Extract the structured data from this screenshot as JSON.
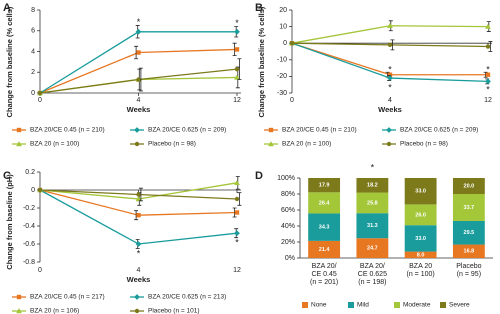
{
  "chart_data": [
    {
      "type": "line",
      "label": "A",
      "x_label": "Weeks",
      "y_label": "Change from baseline (% cells)",
      "categories": [
        "0",
        "4",
        "12"
      ],
      "ylim": [
        0,
        8
      ],
      "yticks": [
        0,
        2,
        4,
        6,
        8
      ],
      "series": [
        {
          "name": "BZA 20/CE 0.45 (n = 210)",
          "color": "#e87722",
          "marker": "square",
          "values": [
            0,
            3.9,
            4.2
          ],
          "errors": [
            null,
            0.6,
            0.6
          ]
        },
        {
          "name": "BZA 20/CE 0.625 (n = 209)",
          "color": "#1a9c9c",
          "marker": "diamond",
          "values": [
            0,
            5.9,
            5.9
          ],
          "errors": [
            null,
            0.6,
            0.5
          ]
        },
        {
          "name": "BZA 20 (n = 100)",
          "color": "#a4c639",
          "marker": "triangle",
          "values": [
            0,
            1.3,
            1.5
          ],
          "errors": [
            null,
            1.0,
            1.0
          ]
        },
        {
          "name": "Placebo (n = 98)",
          "color": "#7d7a1c",
          "marker": "circle",
          "values": [
            0,
            1.3,
            2.3
          ],
          "errors": [
            null,
            1.1,
            1.0
          ]
        }
      ],
      "annotations": [
        {
          "text": "*",
          "x": "4",
          "y": 7.0
        },
        {
          "text": "*",
          "x": "12",
          "y": 6.9
        }
      ]
    },
    {
      "type": "line",
      "label": "B",
      "x_label": "Weeks",
      "y_label": "Change from baseline (% cells)",
      "categories": [
        "0",
        "4",
        "12"
      ],
      "ylim": [
        -30,
        20
      ],
      "yticks": [
        -30,
        -20,
        -10,
        0,
        10,
        20
      ],
      "series": [
        {
          "name": "BZA 20/CE 0.45 (n = 210)",
          "color": "#e87722",
          "marker": "square",
          "values": [
            0,
            -19,
            -19
          ],
          "errors": [
            null,
            1.5,
            1.5
          ]
        },
        {
          "name": "BZA 20/CE 0.625 (n = 209)",
          "color": "#1a9c9c",
          "marker": "diamond",
          "values": [
            0,
            -21,
            -23
          ],
          "errors": [
            null,
            1.5,
            1.5
          ]
        },
        {
          "name": "BZA 20 (n = 100)",
          "color": "#a4c639",
          "marker": "triangle",
          "values": [
            0,
            10.5,
            10
          ],
          "errors": [
            null,
            3,
            3
          ]
        },
        {
          "name": "Placebo (n = 98)",
          "color": "#7d7a1c",
          "marker": "circle",
          "values": [
            0,
            -1,
            -2
          ],
          "errors": [
            null,
            3,
            3
          ]
        }
      ],
      "annotations": [
        {
          "text": "*",
          "x": "4",
          "y": -15
        },
        {
          "text": "*",
          "x": "4",
          "y": -26
        },
        {
          "text": "*",
          "x": "12",
          "y": -15
        },
        {
          "text": "*",
          "x": "12",
          "y": -27
        }
      ]
    },
    {
      "type": "line",
      "label": "C",
      "x_label": "Weeks",
      "y_label": "Change from baseline (pH)",
      "categories": [
        "0",
        "4",
        "12"
      ],
      "ylim": [
        -0.8,
        0.2
      ],
      "yticks": [
        -0.8,
        -0.6,
        -0.4,
        -0.2,
        0,
        0.2
      ],
      "series": [
        {
          "name": "BZA 20/CE 0.45 (n = 217)",
          "color": "#e87722",
          "marker": "square",
          "values": [
            0,
            -0.28,
            -0.25
          ],
          "errors": [
            null,
            0.05,
            0.05
          ]
        },
        {
          "name": "BZA 20/CE 0.625 (n = 213)",
          "color": "#1a9c9c",
          "marker": "diamond",
          "values": [
            0,
            -0.6,
            -0.48
          ],
          "errors": [
            null,
            0.05,
            0.05
          ]
        },
        {
          "name": "BZA 20 (n = 106)",
          "color": "#a4c639",
          "marker": "triangle",
          "values": [
            0,
            -0.1,
            0.08
          ],
          "errors": [
            null,
            0.07,
            0.07
          ]
        },
        {
          "name": "Placebo (n = 101)",
          "color": "#7d7a1c",
          "marker": "circle",
          "values": [
            0,
            -0.05,
            -0.1
          ],
          "errors": [
            null,
            0.07,
            0.07
          ]
        }
      ],
      "annotations": [
        {
          "text": "*",
          "x": "4",
          "y": -0.69
        },
        {
          "text": "*",
          "x": "12",
          "y": -0.57
        }
      ]
    },
    {
      "type": "stacked_bar",
      "label": "D",
      "categories": [
        [
          "BZA 20/",
          "CE 0.45",
          "(n = 201)"
        ],
        [
          "BZA 20/",
          "CE 0.625",
          "(n = 198)"
        ],
        [
          "BZA 20",
          "(n = 100)"
        ],
        [
          "Placebo",
          "(n = 95)"
        ]
      ],
      "ylim": [
        0,
        100
      ],
      "yticks": [
        {
          "value": 0,
          "label": "0%"
        },
        {
          "value": 20,
          "label": "20%"
        },
        {
          "value": 40,
          "label": "40%"
        },
        {
          "value": 60,
          "label": "60%"
        },
        {
          "value": 80,
          "label": "80%"
        },
        {
          "value": 100,
          "label": "100%"
        }
      ],
      "series": [
        {
          "name": "None",
          "color": "#e87722",
          "values": [
            21.4,
            24.7,
            8.0,
            16.8
          ],
          "value_labels": [
            "21.4",
            "24.7",
            "8.0",
            "16.8"
          ]
        },
        {
          "name": "Mild",
          "color": "#1a9c9c",
          "values": [
            34.3,
            31.3,
            33.0,
            29.5
          ],
          "value_labels": [
            "34.3",
            "31.3",
            "33.0",
            "29.5"
          ]
        },
        {
          "name": "Moderate",
          "color": "#a4c639",
          "values": [
            26.4,
            25.8,
            26.0,
            33.7
          ],
          "value_labels": [
            "26.4",
            "25.8",
            "26.0",
            "33.7"
          ]
        },
        {
          "name": "Severe",
          "color": "#7d7a1c",
          "values": [
            17.9,
            18.2,
            33.0,
            20.0
          ],
          "value_labels": [
            "17.9",
            "18.2",
            "33.0",
            "20.0"
          ]
        }
      ],
      "annotations": [
        {
          "text": "*",
          "x": 1,
          "y": 115
        }
      ]
    }
  ]
}
